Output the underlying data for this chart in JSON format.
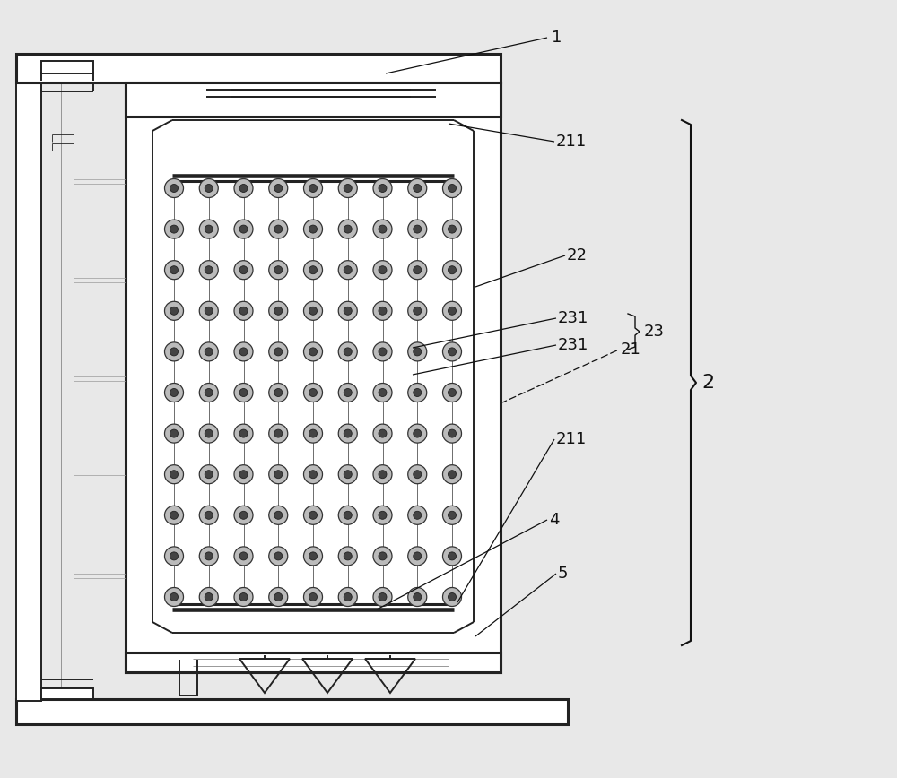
{
  "bg_color": "#e8e8e8",
  "line_color": "#222222",
  "fig_width": 10.0,
  "fig_height": 8.68,
  "dpi": 100,
  "lw_thick": 2.2,
  "lw_main": 1.4,
  "lw_thin": 0.7,
  "lw_vthin": 0.4
}
